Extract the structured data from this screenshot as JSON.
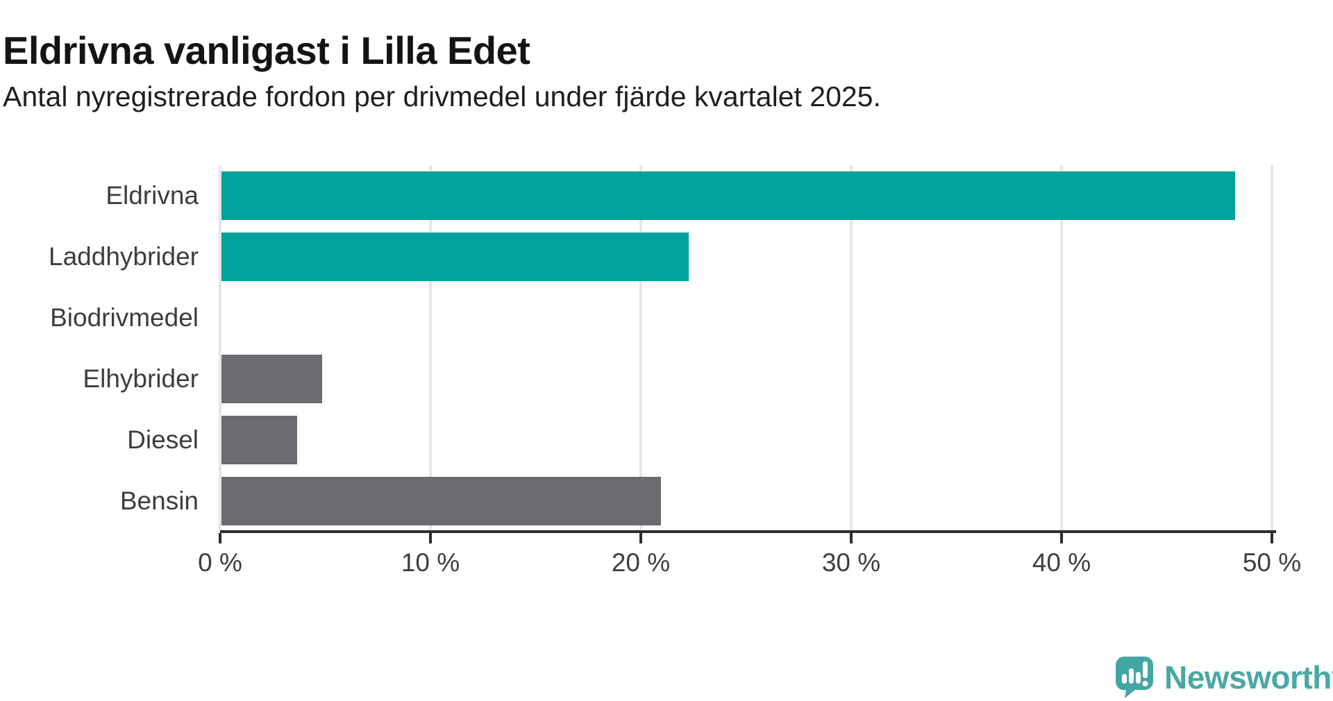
{
  "header": {
    "title": "Eldrivna vanligast i Lilla Edet",
    "subtitle": "Antal nyregistrerade fordon per drivmedel under fjärde kvartalet 2025."
  },
  "chart_data": {
    "type": "bar",
    "orientation": "horizontal",
    "title": "Eldrivna vanligast i Lilla Edet",
    "subtitle": "Antal nyregistrerade fordon per drivmedel under fjärde kvartalet 2025.",
    "categories": [
      "Eldrivna",
      "Laddhybrider",
      "Biodrivmedel",
      "Elhybrider",
      "Diesel",
      "Bensin"
    ],
    "values": [
      48.2,
      22.2,
      0,
      4.8,
      3.6,
      20.9
    ],
    "unit": "%",
    "bar_color_keys": [
      "teal",
      "teal",
      "gray",
      "gray",
      "gray",
      "gray"
    ],
    "colors": {
      "teal": "#00A39B",
      "gray": "#6B6B70"
    },
    "xlabel": "",
    "ylabel": "",
    "xlim": [
      0,
      51.5
    ],
    "x_ticks": [
      0,
      10,
      20,
      30,
      40,
      50
    ],
    "x_tick_labels": [
      "0 %",
      "10 %",
      "20 %",
      "30 %",
      "40 %",
      "50 %"
    ],
    "grid": true,
    "legend": "none"
  },
  "branding": {
    "logo_text": "Newsworthy",
    "logo_text_color": "#4AA8A5",
    "logo_mark_color": "#44A6A3",
    "logo_mark_shade_color": "#3B9B98",
    "logo_bar_color": "#FFFFFF"
  }
}
